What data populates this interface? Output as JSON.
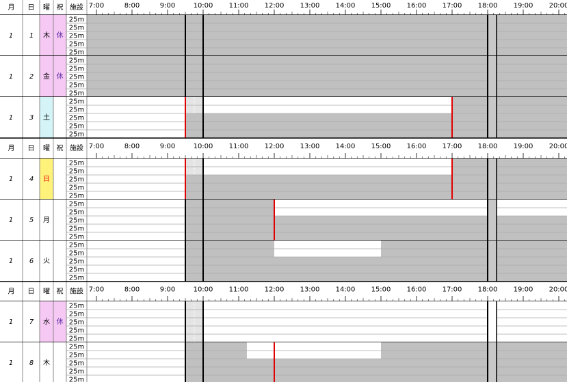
{
  "header": {
    "month": "月",
    "day": "日",
    "weekday": "曜",
    "holiday": "祝",
    "facility": "施設",
    "times": [
      "7:00",
      "8:00",
      "9:00",
      "10:00",
      "11:00",
      "12:00",
      "13:00",
      "14:00",
      "15:00",
      "16:00",
      "17:00",
      "18:00",
      "19:00",
      "20:00"
    ]
  },
  "days": [
    {
      "month": "1",
      "day": "1",
      "weekday": "木",
      "holiday": "休",
      "lanes": [
        "25m",
        "25m",
        "25m",
        "25m",
        "25m"
      ]
    },
    {
      "month": "1",
      "day": "2",
      "weekday": "金",
      "holiday": "休",
      "lanes": [
        "25m",
        "25m",
        "25m",
        "25m",
        "25m"
      ]
    },
    {
      "month": "1",
      "day": "3",
      "weekday": "土",
      "lanes": [
        "25m",
        "25m",
        "25m",
        "25m",
        "25m"
      ]
    },
    {
      "month": "1",
      "day": "4",
      "weekday": "日",
      "lanes": [
        "25m",
        "25m",
        "25m",
        "25m",
        "25m"
      ]
    },
    {
      "month": "1",
      "day": "5",
      "weekday": "月",
      "lanes": [
        "25m",
        "25m",
        "25m",
        "25m",
        "25m"
      ]
    },
    {
      "month": "1",
      "day": "6",
      "weekday": "火",
      "lanes": [
        "25m",
        "25m",
        "25m",
        "25m",
        "25m"
      ]
    },
    {
      "month": "1",
      "day": "7",
      "weekday": "水",
      "holiday": "休",
      "lanes": [
        "25m",
        "25m",
        "25m",
        "25m",
        "25m"
      ]
    },
    {
      "month": "1",
      "day": "8",
      "weekday": "木",
      "lanes": [
        "25m",
        "25m",
        "25m",
        "25m",
        "25m"
      ]
    }
  ]
}
